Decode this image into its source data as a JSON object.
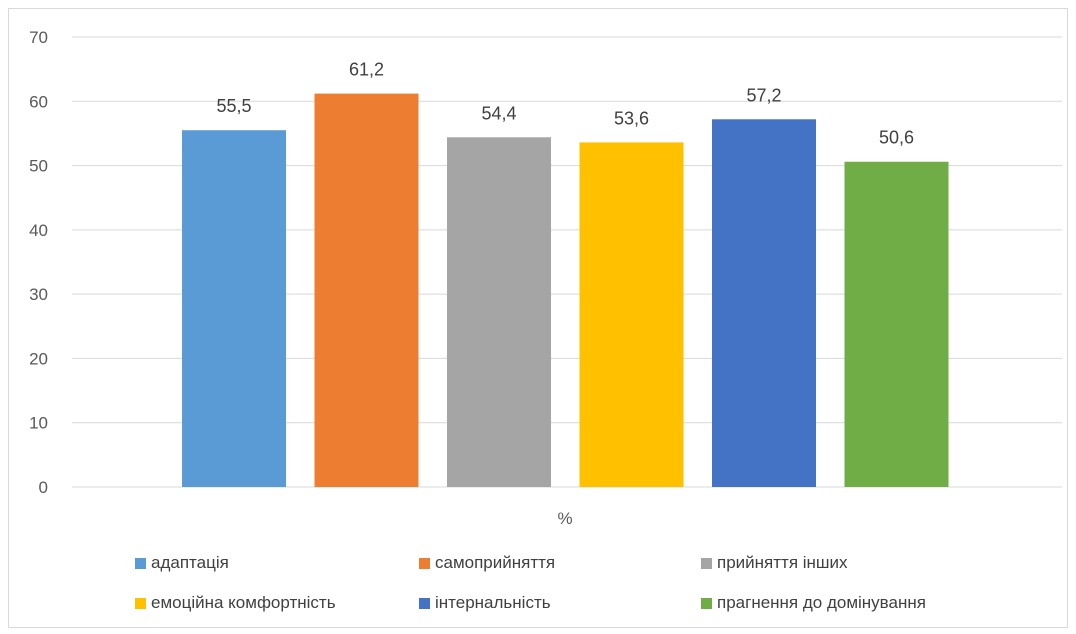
{
  "chart_data": {
    "type": "bar",
    "xlabel": "%",
    "ylim": [
      0,
      70
    ],
    "yticks": [
      0,
      10,
      20,
      30,
      40,
      50,
      60,
      70
    ],
    "grid": true,
    "legend_position": "bottom",
    "series": [
      {
        "name": "адаптація",
        "value": 55.5,
        "label": "55,5",
        "color": "#5B9BD5"
      },
      {
        "name": "самоприйняття",
        "value": 61.2,
        "label": "61,2",
        "color": "#ED7D31"
      },
      {
        "name": "прийняття інших",
        "value": 54.4,
        "label": "54,4",
        "color": "#A5A5A5"
      },
      {
        "name": "емоційна комфортність",
        "value": 53.6,
        "label": "53,6",
        "color": "#FFC000"
      },
      {
        "name": "інтернальність",
        "value": 57.2,
        "label": "57,2",
        "color": "#4472C4"
      },
      {
        "name": "прагнення до домінування",
        "value": 50.6,
        "label": "50,6",
        "color": "#70AD47"
      }
    ]
  }
}
